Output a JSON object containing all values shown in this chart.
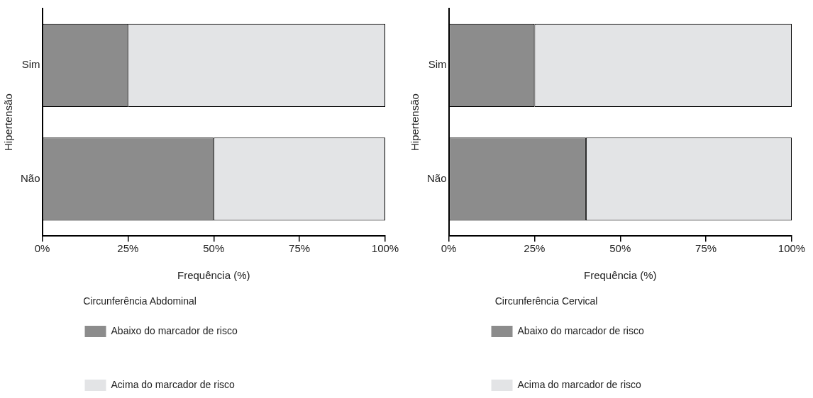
{
  "chart_data": [
    {
      "type": "bar",
      "orientation": "horizontal",
      "stacked": true,
      "categories": [
        "Sim",
        "Não"
      ],
      "xlabel": "Frequência (%)",
      "ylabel": "Hipertensão",
      "legend_title": "Circunferência Abdominal",
      "legend": "bottom",
      "grid": false,
      "series": [
        {
          "name": "Abaixo do marcador de risco",
          "color": "#8c8c8c",
          "values": [
            25,
            50
          ]
        },
        {
          "name": "Acima do marcador de risco",
          "color": "#e3e4e6",
          "values": [
            75,
            50
          ]
        }
      ],
      "xlim": [
        0,
        100
      ],
      "xticks": [
        {
          "value": 0,
          "label": "0%"
        },
        {
          "value": 25,
          "label": "25%"
        },
        {
          "value": 50,
          "label": "50%"
        },
        {
          "value": 75,
          "label": "75%"
        },
        {
          "value": 100,
          "label": "100%"
        }
      ]
    },
    {
      "type": "bar",
      "orientation": "horizontal",
      "stacked": true,
      "categories": [
        "Sim",
        "Não"
      ],
      "xlabel": "Frequência (%)",
      "ylabel": "Hipertensão",
      "legend_title": "Circunferência Cervical",
      "legend": "bottom",
      "grid": false,
      "series": [
        {
          "name": "Abaixo do marcador de risco",
          "color": "#8c8c8c",
          "values": [
            25,
            40
          ]
        },
        {
          "name": "Acima do marcador de risco",
          "color": "#e3e4e6",
          "values": [
            75,
            60
          ]
        }
      ],
      "xlim": [
        0,
        100
      ],
      "xticks": [
        {
          "value": 0,
          "label": "0%"
        },
        {
          "value": 25,
          "label": "25%"
        },
        {
          "value": 50,
          "label": "50%"
        },
        {
          "value": 75,
          "label": "75%"
        },
        {
          "value": 100,
          "label": "100%"
        }
      ]
    }
  ]
}
